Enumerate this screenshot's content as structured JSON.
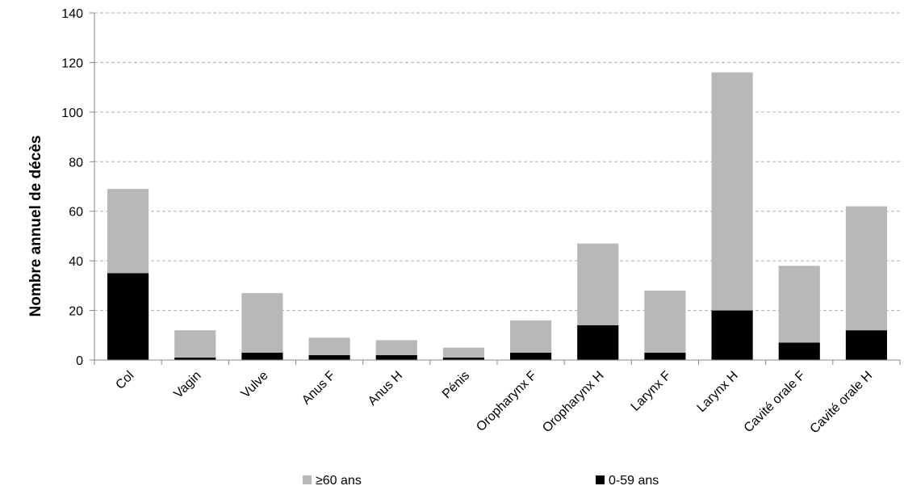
{
  "chart_data": {
    "type": "bar",
    "stacked": true,
    "categories": [
      "Col",
      "Vagin",
      "Vulve",
      "Anus F",
      "Anus H",
      "Pénis",
      "Oropharynx F",
      "Oropharynx H",
      "Larynx F",
      "Larynx H",
      "Cavité orale F",
      "Cavité orale H"
    ],
    "series": [
      {
        "name": "0-59 ans",
        "color": "#000000",
        "values": [
          35,
          1,
          3,
          2,
          2,
          1,
          3,
          14,
          3,
          20,
          7,
          12
        ]
      },
      {
        "name": "≥60 ans",
        "color": "#b8b8b8",
        "values": [
          34,
          11,
          24,
          7,
          6,
          4,
          13,
          33,
          25,
          96,
          31,
          50
        ]
      }
    ],
    "ylabel": "Nombre annuel de décès",
    "ylim": [
      0,
      140
    ],
    "yticks": [
      0,
      20,
      40,
      60,
      80,
      100,
      120,
      140
    ],
    "grid": true,
    "legend_position": "bottom",
    "legend_order": [
      "≥60 ans",
      "0-59 ans"
    ]
  }
}
